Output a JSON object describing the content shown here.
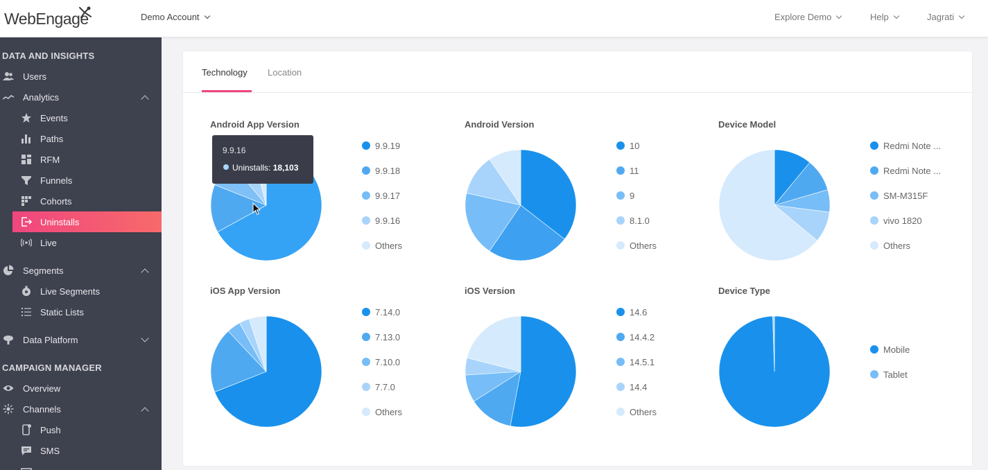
{
  "app": {
    "logo_text": "WebEngage",
    "account": "Demo Account",
    "nav_right": [
      "Explore Demo",
      "Help",
      "Jagrati"
    ]
  },
  "sidebar": {
    "section1": "DATA AND INSIGHTS",
    "section2": "CAMPAIGN MANAGER",
    "items": [
      {
        "label": "Users",
        "icon": "users-icon"
      },
      {
        "label": "Analytics",
        "icon": "analytics-icon"
      },
      {
        "label": "Events",
        "icon": "star-icon"
      },
      {
        "label": "Paths",
        "icon": "bar-chart-icon"
      },
      {
        "label": "RFM",
        "icon": "grid-icon"
      },
      {
        "label": "Funnels",
        "icon": "funnel-icon"
      },
      {
        "label": "Cohorts",
        "icon": "dots-grid-icon"
      },
      {
        "label": "Uninstalls",
        "icon": "exit-icon"
      },
      {
        "label": "Live",
        "icon": "broadcast-icon"
      },
      {
        "label": "Segments",
        "icon": "pie-icon"
      },
      {
        "label": "Live Segments",
        "icon": "live-segment-icon"
      },
      {
        "label": "Static Lists",
        "icon": "list-icon"
      },
      {
        "label": "Data Platform",
        "icon": "data-platform-icon"
      },
      {
        "label": "Overview",
        "icon": "eye-icon"
      },
      {
        "label": "Channels",
        "icon": "channels-icon"
      },
      {
        "label": "Push",
        "icon": "phone-icon"
      },
      {
        "label": "SMS",
        "icon": "sms-icon"
      }
    ]
  },
  "tabs": [
    "Technology",
    "Location"
  ],
  "colors": {
    "accent": "#f0467e",
    "sidebar_bg": "#3e414e",
    "blue_1": "#1991ec",
    "blue_2": "#35a2f0",
    "blue_3": "#77bdf7",
    "blue_4": "#a8d4fb",
    "blue_5": "#d5eafc"
  },
  "charts": [
    {
      "title": "Android App Version",
      "legend": [
        "9.9.19",
        "9.9.18",
        "9.9.17",
        "9.9.16",
        "Others"
      ],
      "slices": [
        {
          "value": 0.67,
          "color": "#35a3f5"
        },
        {
          "value": 0.14,
          "color": "#4fa9f1"
        },
        {
          "value": 0.08,
          "color": "#7fc0f7"
        },
        {
          "value": 0.07,
          "color": "#a8d4fb"
        },
        {
          "value": 0.04,
          "color": "#d5eafc"
        }
      ]
    },
    {
      "title": "Android Version",
      "legend": [
        "10",
        "11",
        "9",
        "8.1.0",
        "Others"
      ],
      "slices": [
        {
          "value": 0.355,
          "color": "#1991ec"
        },
        {
          "value": 0.24,
          "color": "#3ea0f1"
        },
        {
          "value": 0.19,
          "color": "#77bdf7"
        },
        {
          "value": 0.12,
          "color": "#a8d4fb"
        },
        {
          "value": 0.095,
          "color": "#d5eafc"
        }
      ]
    },
    {
      "title": "Device Model",
      "legend": [
        "Redmi Note ...",
        "Redmi Note ...",
        "SM-M315F",
        "vivo 1820",
        "Others"
      ],
      "slices": [
        {
          "value": 0.11,
          "color": "#1991ec"
        },
        {
          "value": 0.095,
          "color": "#4fa9f1"
        },
        {
          "value": 0.065,
          "color": "#77bdf7"
        },
        {
          "value": 0.09,
          "color": "#a8d4fb"
        },
        {
          "value": 0.64,
          "color": "#d5eafc"
        }
      ]
    },
    {
      "title": "iOS App Version",
      "legend": [
        "7.14.0",
        "7.13.0",
        "7.10.0",
        "7.7.0",
        "Others"
      ],
      "slices": [
        {
          "value": 0.69,
          "color": "#1991ec"
        },
        {
          "value": 0.19,
          "color": "#4fa9f1"
        },
        {
          "value": 0.04,
          "color": "#77bdf7"
        },
        {
          "value": 0.03,
          "color": "#a8d4fb"
        },
        {
          "value": 0.05,
          "color": "#d5eafc"
        }
      ]
    },
    {
      "title": "iOS Version",
      "legend": [
        "14.6",
        "14.4.2",
        "14.5.1",
        "14.4",
        "Others"
      ],
      "slices": [
        {
          "value": 0.53,
          "color": "#1991ec"
        },
        {
          "value": 0.13,
          "color": "#4fa9f1"
        },
        {
          "value": 0.08,
          "color": "#77bdf7"
        },
        {
          "value": 0.05,
          "color": "#a8d4fb"
        },
        {
          "value": 0.21,
          "color": "#d5eafc"
        }
      ]
    },
    {
      "title": "Device Type",
      "legend": [
        "Mobile",
        "Tablet"
      ],
      "slices": [
        {
          "value": 0.995,
          "color": "#1991ec"
        },
        {
          "value": 0.005,
          "color": "#a8d4fb"
        }
      ]
    }
  ],
  "legend_dot_colors": [
    "#1991ec",
    "#4fa9f1",
    "#77bdf7",
    "#a8d4fb",
    "#d5eafc"
  ],
  "device_type_dot_colors": [
    "#1991ec",
    "#77bdf7"
  ],
  "tooltip": {
    "title": "9.9.16",
    "label": "Uninstalls:",
    "value": "18,103"
  }
}
